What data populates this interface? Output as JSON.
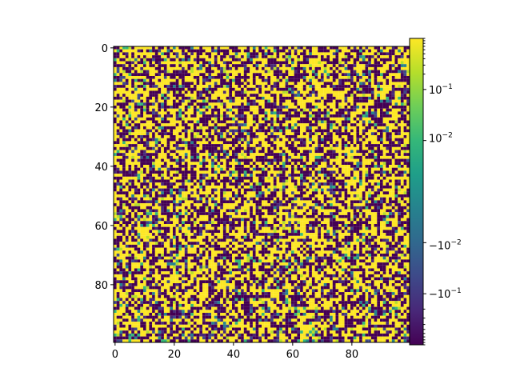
{
  "chart_data": {
    "type": "heatmap",
    "title": "",
    "xlabel": "",
    "ylabel": "",
    "grid": false,
    "rows": 100,
    "cols": 100,
    "xlim": [
      -0.5,
      99.5
    ],
    "ylim": [
      99.5,
      -0.5
    ],
    "x_ticks": [
      0,
      20,
      40,
      60,
      80
    ],
    "y_ticks": [
      0,
      20,
      40,
      60,
      80
    ],
    "colormap": "viridis",
    "colorbar": {
      "scale": "symlog",
      "linthresh": 0.01,
      "vmin": -1,
      "vmax": 1,
      "placement": "right",
      "tick_labels": [
        {
          "value": 0.1,
          "base": "10",
          "exponent": "−1"
        },
        {
          "value": 0.01,
          "base": "10",
          "exponent": "−2"
        },
        {
          "value": -0.01,
          "base": "−10",
          "exponent": "−2"
        },
        {
          "value": -0.1,
          "base": "−10",
          "exponent": "−1"
        }
      ]
    },
    "value_distribution": "dense random noise; most cells near the colormap extremes (about -1 or +1), a minority of intermediate values",
    "value_fractions": {
      "high": 0.45,
      "low": 0.4,
      "mid": 0.15
    }
  },
  "colors": {
    "viridis": [
      "#440154",
      "#482878",
      "#3e4989",
      "#31688e",
      "#26828e",
      "#1f9e89",
      "#35b779",
      "#6ece58",
      "#b5de2b",
      "#fde725"
    ]
  }
}
